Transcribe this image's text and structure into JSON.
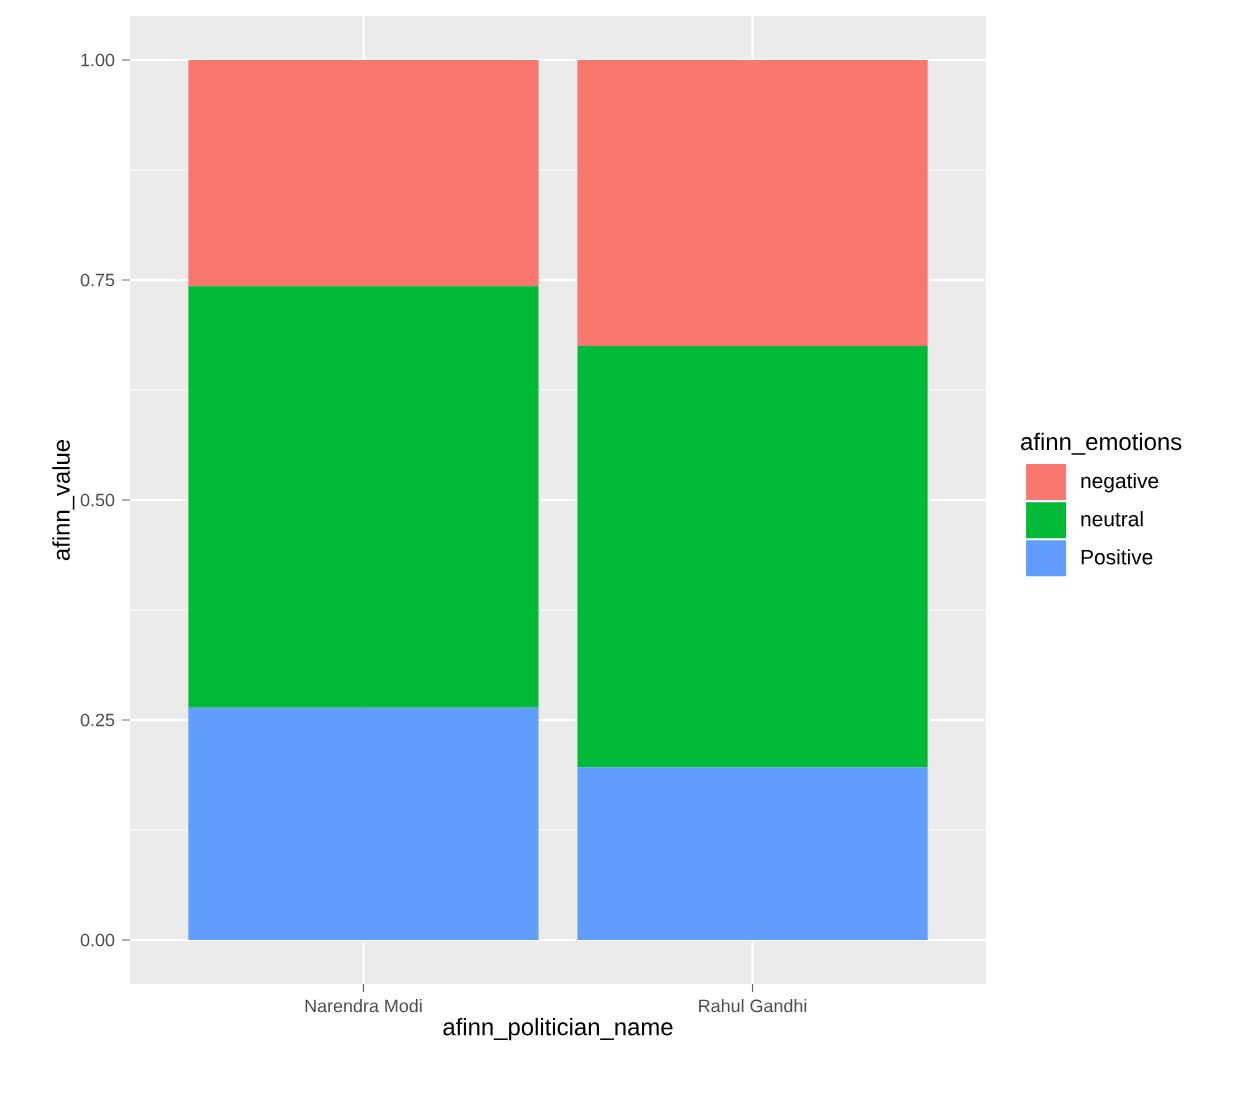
{
  "chart_data": {
    "type": "bar",
    "stacked": true,
    "xlabel": "afinn_politician_name",
    "ylabel": "afinn_value",
    "legend_title": "afinn_emotions",
    "categories": [
      "Narendra Modi",
      "Rahul Gandhi"
    ],
    "series": [
      {
        "name": "Positive",
        "color": "#619cff",
        "values": [
          0.264,
          0.196
        ]
      },
      {
        "name": "neutral",
        "color": "#00ba38",
        "values": [
          0.479,
          0.479
        ]
      },
      {
        "name": "negative",
        "color": "#f8766d",
        "values": [
          0.257,
          0.325
        ]
      }
    ],
    "ylim": [
      -0.05,
      1.05
    ],
    "yticks": [
      {
        "value": 0,
        "label": "0.00"
      },
      {
        "value": 0.25,
        "label": "0.25"
      },
      {
        "value": 0.5,
        "label": "0.50"
      },
      {
        "value": 0.75,
        "label": "0.75"
      },
      {
        "value": 1,
        "label": "1.00"
      }
    ],
    "grid": true,
    "legend": "right"
  }
}
